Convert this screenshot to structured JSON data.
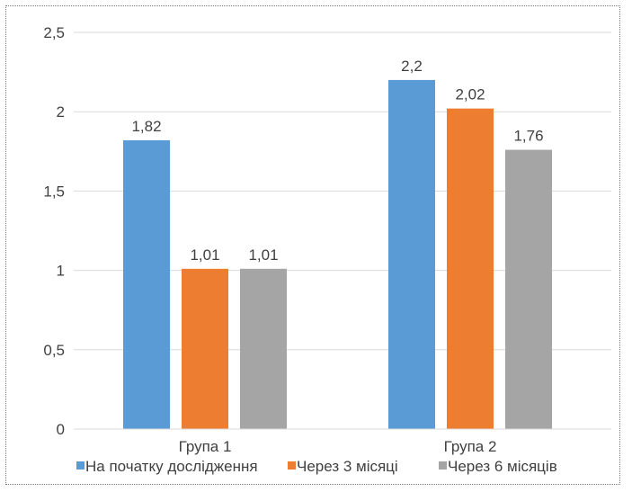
{
  "chart_data": {
    "type": "bar",
    "categories": [
      "Група 1",
      "Група 2"
    ],
    "series": [
      {
        "name": "На початку дослідження",
        "values": [
          1.82,
          2.2
        ],
        "labels": [
          "1,82",
          "2,2"
        ],
        "color": "#5b9bd5"
      },
      {
        "name": "Через 3 місяці",
        "values": [
          1.01,
          2.02
        ],
        "labels": [
          "1,01",
          "2,02"
        ],
        "color": "#ed7d31"
      },
      {
        "name": "Через 6 місяців",
        "values": [
          1.01,
          1.76
        ],
        "labels": [
          "1,01",
          "1,76"
        ],
        "color": "#a5a5a5"
      }
    ],
    "y_ticks": [
      0,
      0.5,
      1,
      1.5,
      2,
      2.5
    ],
    "y_tick_labels": [
      "0",
      "0,5",
      "1",
      "1,5",
      "2",
      "2,5"
    ],
    "ylim": [
      0,
      2.5
    ],
    "grid": true,
    "legend_position": "bottom",
    "gridline_color": "#d9d9d9"
  }
}
